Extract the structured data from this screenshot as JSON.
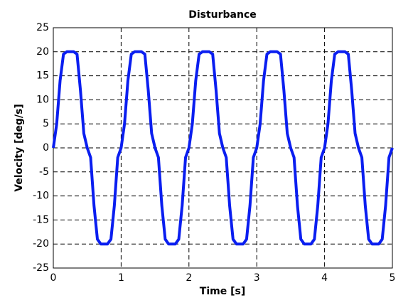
{
  "chart_data": {
    "type": "line",
    "title": "Disturbance",
    "x_label": "Time [s]",
    "y_label": "Velocity [deg/s]",
    "x": [
      0,
      0.05,
      0.1,
      0.15,
      0.2,
      0.25,
      0.3,
      0.35,
      0.4,
      0.45,
      0.5,
      0.55,
      0.6,
      0.65,
      0.7,
      0.75,
      0.8,
      0.85,
      0.9,
      0.95,
      1,
      1.05,
      1.1,
      1.15,
      1.2,
      1.25,
      1.3,
      1.35,
      1.4,
      1.45,
      1.5,
      1.55,
      1.6,
      1.65,
      1.7,
      1.75,
      1.8,
      1.85,
      1.9,
      1.95,
      2,
      2.05,
      2.1,
      2.15,
      2.2,
      2.25,
      2.3,
      2.35,
      2.4,
      2.45,
      2.5,
      2.55,
      2.6,
      2.65,
      2.7,
      2.75,
      2.8,
      2.85,
      2.9,
      2.95,
      3,
      3.05,
      3.1,
      3.15,
      3.2,
      3.25,
      3.3,
      3.35,
      3.4,
      3.45,
      3.5,
      3.55,
      3.6,
      3.65,
      3.7,
      3.75,
      3.8,
      3.85,
      3.9,
      3.95,
      4,
      4.05,
      4.1,
      4.15,
      4.2,
      4.25,
      4.3,
      4.35,
      4.4,
      4.45,
      4.5,
      4.55,
      4.6,
      4.65,
      4.7,
      4.75,
      4.8,
      4.85,
      4.9,
      4.95,
      5
    ],
    "series": [
      {
        "name": "Velocity",
        "color": "#0a1ef0",
        "values": [
          0,
          5,
          14,
          19.5,
          20,
          20,
          20,
          19.5,
          12,
          3,
          0,
          -2,
          -12,
          -19,
          -20,
          -20,
          -20,
          -19,
          -12,
          -2,
          0,
          5,
          14,
          19.5,
          20,
          20,
          20,
          19.5,
          12,
          3,
          0,
          -2,
          -12,
          -19,
          -20,
          -20,
          -20,
          -19,
          -12,
          -2,
          0,
          5,
          14,
          19.5,
          20,
          20,
          20,
          19.5,
          12,
          3,
          0,
          -2,
          -12,
          -19,
          -20,
          -20,
          -20,
          -19,
          -12,
          -2,
          0,
          5,
          14,
          19.5,
          20,
          20,
          20,
          19.5,
          12,
          3,
          0,
          -2,
          -12,
          -19,
          -20,
          -20,
          -20,
          -19,
          -12,
          -2,
          0,
          5,
          14,
          19.5,
          20,
          20,
          20,
          19.5,
          12,
          3,
          0,
          -2,
          -12,
          -19,
          -20,
          -20,
          -20,
          -19,
          -12,
          -2,
          0
        ]
      }
    ],
    "xlim": [
      0,
      5
    ],
    "ylim": [
      -25,
      25
    ],
    "xticks": [
      0,
      1,
      2,
      3,
      4,
      5
    ],
    "yticks": [
      -25,
      -20,
      -15,
      -10,
      -5,
      0,
      5,
      10,
      15,
      20,
      25
    ],
    "grid": true
  }
}
